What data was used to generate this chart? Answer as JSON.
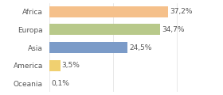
{
  "categories": [
    "Africa",
    "Europa",
    "Asia",
    "America",
    "Oceania"
  ],
  "values": [
    37.2,
    34.7,
    24.5,
    3.5,
    0.1
  ],
  "labels": [
    "37,2%",
    "34,7%",
    "24,5%",
    "3,5%",
    "0,1%"
  ],
  "bar_colors": [
    "#f5c08a",
    "#b8c98a",
    "#7b9bc8",
    "#f0d070",
    "#cccccc"
  ],
  "background_color": "#ffffff",
  "xlim": [
    0,
    46
  ],
  "bar_height": 0.62,
  "label_fontsize": 6.5,
  "tick_fontsize": 6.5,
  "grid_color": "#e0e0e0"
}
